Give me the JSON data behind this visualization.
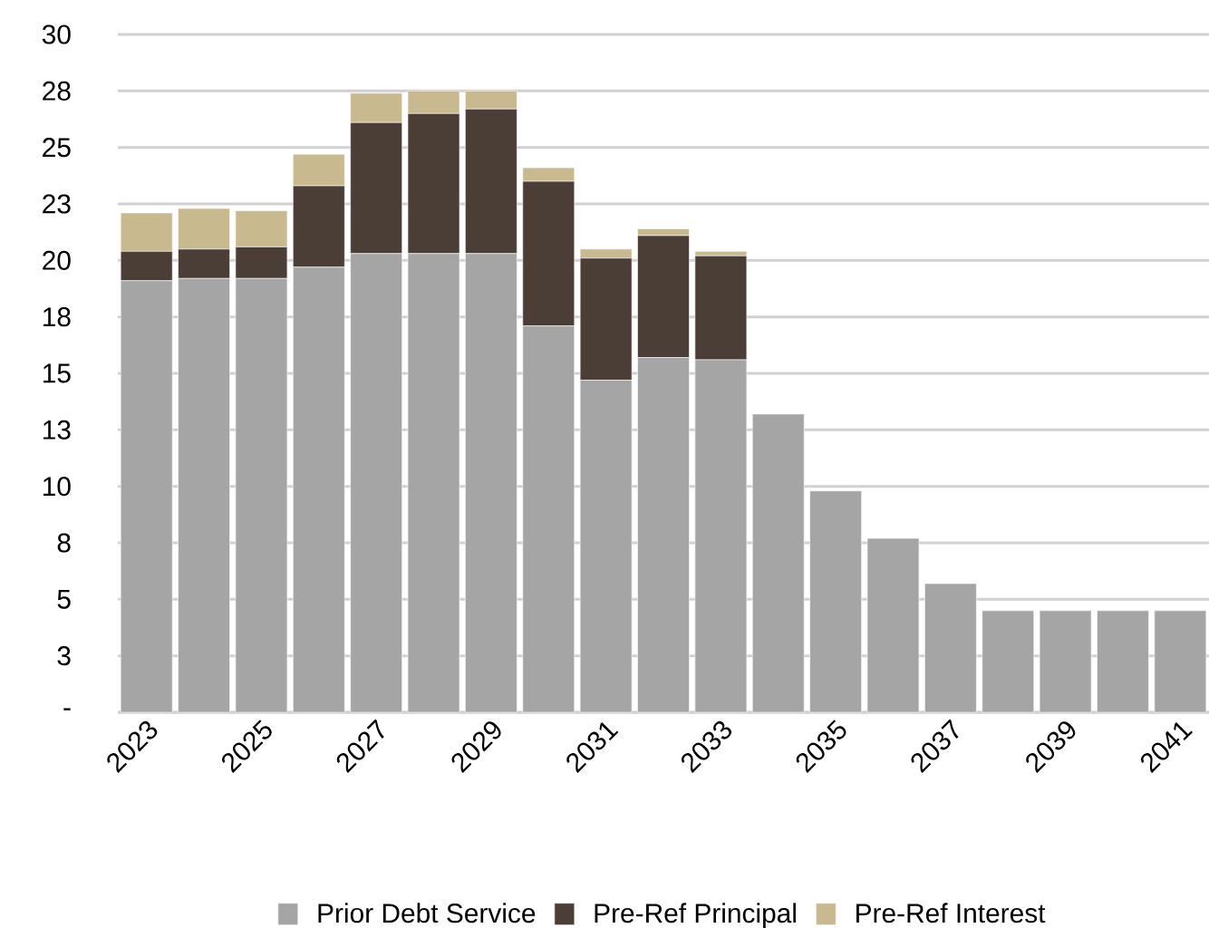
{
  "chart_data": {
    "type": "bar",
    "stacked": true,
    "categories": [
      "2023",
      null,
      "2025",
      null,
      "2027",
      null,
      "2029",
      null,
      "2031",
      null,
      "2033",
      null,
      "2035",
      null,
      "2037",
      null,
      "2039",
      null,
      "2041"
    ],
    "series": [
      {
        "name": "Prior Debt Service",
        "color": "#a5a5a5",
        "values": [
          19.1,
          19.2,
          19.2,
          19.7,
          20.3,
          20.3,
          20.3,
          17.1,
          14.7,
          15.7,
          15.6,
          13.2,
          9.8,
          7.7,
          5.7,
          4.5,
          4.5,
          4.5,
          4.5
        ]
      },
      {
        "name": "Pre-Ref Principal",
        "color": "#4b3e36",
        "values": [
          1.3,
          1.3,
          1.4,
          3.6,
          5.8,
          6.2,
          6.4,
          6.4,
          5.4,
          5.4,
          4.6,
          null,
          null,
          null,
          null,
          null,
          null,
          null,
          null
        ]
      },
      {
        "name": "Pre-Ref Interest",
        "color": "#c8b98f",
        "values": [
          1.7,
          1.8,
          1.6,
          1.4,
          1.3,
          1.0,
          0.8,
          0.6,
          0.4,
          0.3,
          0.2,
          null,
          null,
          null,
          null,
          null,
          null,
          null,
          null
        ]
      }
    ],
    "ylim": [
      0,
      30
    ],
    "yticks": [
      {
        "value": 0,
        "label": "-"
      },
      {
        "value": 2.5,
        "label": "3"
      },
      5,
      {
        "value": 7.5,
        "label": "8"
      },
      10,
      {
        "value": 12.5,
        "label": "13"
      },
      15,
      {
        "value": 17.5,
        "label": "18"
      },
      20,
      {
        "value": 22.5,
        "label": "23"
      },
      25,
      {
        "value": 27.5,
        "label": "28"
      },
      30
    ],
    "grid": "y",
    "legend": "bottom"
  }
}
